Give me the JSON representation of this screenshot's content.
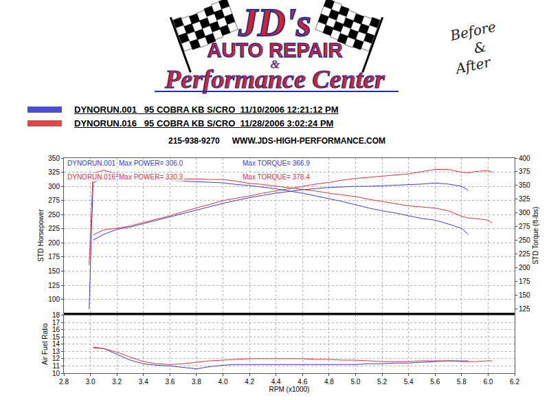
{
  "header": {
    "logo_top": "JD's",
    "logo_mid": "AUTO REPAIR",
    "logo_amp": "&",
    "logo_bottom": "Performance Center",
    "note": [
      "Before",
      "&",
      "After"
    ],
    "runs": [
      {
        "name": "DYNORUN.001",
        "description": "95 COBRA KB S/CRO  11/10/2006 12:21:12 PM",
        "color": "#4c4cd8"
      },
      {
        "name": "DYNORUN.016",
        "description": "95 COBRA KB S/CRO  11/28/2006 3:02:24 PM",
        "color": "#e04848"
      }
    ],
    "phone": "215-938-9270",
    "website": "WWW.JDS-HIGH-PERFORMANCE.COM"
  },
  "chart_data": [
    {
      "type": "line",
      "y_label": "STD Horsepower",
      "y2_label": "STD Torque (ft-lbs)",
      "xlim": [
        2.8,
        6.2
      ],
      "xticks": [
        2.8,
        {
          "value": 3,
          "label": "3.0"
        },
        3.2,
        3.4,
        3.6,
        3.8,
        {
          "value": 4,
          "label": "4.0"
        },
        4.2,
        4.4,
        4.6,
        4.8,
        {
          "value": 5,
          "label": "5.0"
        },
        5.2,
        5.4,
        5.6,
        5.8,
        {
          "value": 6,
          "label": "6.0"
        },
        6.2
      ],
      "ylim": [
        76,
        350
      ],
      "yticks": [
        100,
        125,
        150,
        175,
        200,
        225,
        250,
        275,
        300,
        325,
        350
      ],
      "y2lim": [
        118,
        400
      ],
      "y2ticks": [
        125,
        150,
        175,
        200,
        225,
        250,
        275,
        300,
        325,
        350,
        375,
        400
      ],
      "grid": true,
      "tick_labels": "y",
      "annotations": [
        {
          "texts": [
            "DYNORUN.001",
            "Max POWER= 306.0",
            "Max TORQUE= 366.9"
          ],
          "color": "#3a3ad6"
        },
        {
          "texts": [
            "DYNORUN.016",
            "Max POWER= 330.3",
            "Max TORQUE= 378.4"
          ],
          "color": "#e0303a"
        }
      ],
      "x": [
        2.99,
        3.02,
        3.1,
        3.2,
        3.3,
        3.4,
        3.5,
        3.6,
        3.7,
        3.8,
        3.9,
        4.0,
        4.1,
        4.2,
        4.3,
        4.4,
        4.5,
        4.6,
        4.7,
        4.8,
        4.9,
        5.0,
        5.1,
        5.2,
        5.3,
        5.4,
        5.5,
        5.6,
        5.7,
        5.8,
        5.85,
        5.9,
        6.0,
        6.03
      ],
      "series": [
        {
          "name": "DYNORUN.001",
          "color": "#3a3ad6",
          "axis": "y",
          "values": [
            null,
            205,
            215,
            224,
            228,
            234,
            240,
            246,
            252,
            258,
            264,
            270,
            275,
            280,
            284,
            288,
            291,
            294,
            296,
            298,
            299,
            300,
            300,
            301,
            302,
            303,
            304,
            306,
            304,
            300,
            293,
            null,
            null,
            null
          ]
        },
        {
          "name": "DYNORUN.016",
          "color": "#e0303a",
          "axis": "y",
          "values": [
            null,
            214,
            223,
            226,
            230,
            236,
            242,
            248,
            255,
            262,
            268,
            275,
            279,
            283,
            288,
            292,
            296,
            300,
            304,
            307,
            311,
            314,
            316,
            318,
            320,
            322,
            326,
            330,
            330,
            325,
            324,
            326,
            328,
            325
          ]
        },
        {
          "name": "DYNORUN.001",
          "color": "#3a3ad6",
          "axis": "y2",
          "values": [
            125,
            355,
            364,
            367,
            363,
            361,
            360,
            359,
            358,
            357,
            356,
            355,
            352,
            350,
            347,
            344,
            340,
            336,
            331,
            326,
            321,
            315,
            309,
            304,
            300,
            295,
            290,
            287,
            280,
            272,
            261,
            null,
            null,
            null
          ]
        },
        {
          "name": "DYNORUN.016",
          "color": "#e0303a",
          "axis": "y2",
          "values": [
            205,
            372,
            378,
            371,
            366,
            365,
            363,
            362,
            362,
            362,
            361,
            361,
            358,
            354,
            352,
            349,
            346,
            343,
            340,
            336,
            333,
            330,
            325,
            321,
            317,
            313,
            311,
            309,
            304,
            294,
            291,
            290,
            287,
            282
          ]
        }
      ]
    },
    {
      "type": "line",
      "x_label": "RPM (x1000)",
      "y_label": "Air Fuel Ratio",
      "xlim": [
        2.8,
        6.2
      ],
      "xticks": [
        2.8,
        {
          "value": 3,
          "label": "3.0"
        },
        3.2,
        3.4,
        3.6,
        3.8,
        {
          "value": 4,
          "label": "4.0"
        },
        4.2,
        4.4,
        4.6,
        4.8,
        {
          "value": 5,
          "label": "5.0"
        },
        5.2,
        5.4,
        5.6,
        5.8,
        {
          "value": 6,
          "label": "6.0"
        },
        6.2
      ],
      "ylim": [
        10,
        18
      ],
      "yticks": [
        10,
        11,
        12,
        13,
        14,
        15,
        16,
        17,
        18
      ],
      "grid": true,
      "x": [
        2.99,
        3.02,
        3.1,
        3.2,
        3.3,
        3.4,
        3.5,
        3.6,
        3.7,
        3.8,
        3.9,
        4.0,
        4.1,
        4.2,
        4.3,
        4.4,
        4.5,
        4.6,
        4.7,
        4.8,
        4.9,
        5.0,
        5.1,
        5.2,
        5.3,
        5.4,
        5.5,
        5.6,
        5.7,
        5.8,
        5.85,
        5.9,
        6.0,
        6.03
      ],
      "series": [
        {
          "name": "DYNORUN.001",
          "color": "#3a3ad6",
          "values": [
            null,
            13.6,
            13.4,
            12.6,
            11.8,
            11.3,
            11.1,
            11.0,
            10.8,
            10.6,
            10.9,
            11.1,
            11.2,
            11.2,
            11.2,
            11.2,
            11.2,
            11.2,
            11.2,
            11.2,
            11.2,
            11.2,
            11.3,
            11.3,
            11.4,
            11.4,
            11.5,
            11.6,
            11.7,
            11.7,
            11.7,
            null,
            null,
            null
          ]
        },
        {
          "name": "DYNORUN.016",
          "color": "#e0303a",
          "values": [
            null,
            13.5,
            13.4,
            12.9,
            12.2,
            11.6,
            11.3,
            11.2,
            11.3,
            11.5,
            11.7,
            11.8,
            11.9,
            12.0,
            12.0,
            12.0,
            12.0,
            12.0,
            11.9,
            11.9,
            11.8,
            11.8,
            11.7,
            11.6,
            11.6,
            11.6,
            11.7,
            11.7,
            11.7,
            11.6,
            11.6,
            11.6,
            11.7,
            11.7
          ]
        }
      ]
    }
  ]
}
